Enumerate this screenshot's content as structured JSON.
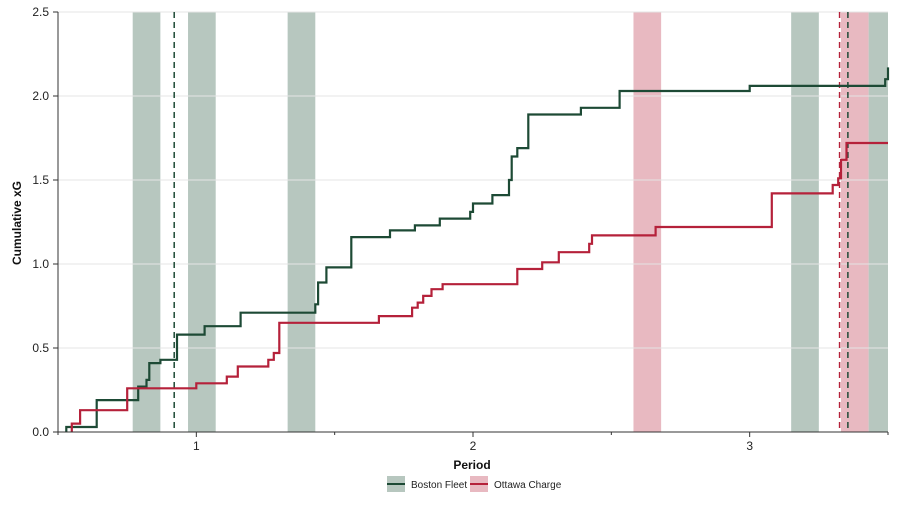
{
  "chart_data": {
    "type": "line",
    "step": true,
    "xlabel": "Period",
    "ylabel": "Cumulative xG",
    "xlim": [
      0.5,
      3.5
    ],
    "ylim": [
      0,
      2.5
    ],
    "xticks": [
      1,
      2,
      3
    ],
    "xticklabels": [
      "1",
      "2",
      "3"
    ],
    "yticks": [
      0.0,
      0.5,
      1.0,
      1.5,
      2.0,
      2.5
    ],
    "yticklabels": [
      "0.0",
      "0.5",
      "1.0",
      "1.5",
      "2.0",
      "2.5"
    ],
    "grid": "horizontal",
    "legend": "bottom-center",
    "series": [
      {
        "name": "Boston Fleet",
        "color": "#1d4a35",
        "band_color": "#b7c7bf",
        "points": [
          [
            0.53,
            0.0
          ],
          [
            0.53,
            0.03
          ],
          [
            0.58,
            0.03
          ],
          [
            0.64,
            0.03
          ],
          [
            0.64,
            0.19
          ],
          [
            0.79,
            0.19
          ],
          [
            0.79,
            0.27
          ],
          [
            0.82,
            0.27
          ],
          [
            0.82,
            0.31
          ],
          [
            0.83,
            0.31
          ],
          [
            0.83,
            0.41
          ],
          [
            0.87,
            0.41
          ],
          [
            0.87,
            0.43
          ],
          [
            0.93,
            0.43
          ],
          [
            0.93,
            0.58
          ],
          [
            1.03,
            0.58
          ],
          [
            1.03,
            0.63
          ],
          [
            1.16,
            0.63
          ],
          [
            1.16,
            0.71
          ],
          [
            1.43,
            0.71
          ],
          [
            1.43,
            0.76
          ],
          [
            1.44,
            0.76
          ],
          [
            1.44,
            0.89
          ],
          [
            1.47,
            0.89
          ],
          [
            1.47,
            0.98
          ],
          [
            1.56,
            0.98
          ],
          [
            1.56,
            1.16
          ],
          [
            1.7,
            1.16
          ],
          [
            1.7,
            1.2
          ],
          [
            1.79,
            1.2
          ],
          [
            1.79,
            1.23
          ],
          [
            1.88,
            1.23
          ],
          [
            1.88,
            1.27
          ],
          [
            1.99,
            1.27
          ],
          [
            1.99,
            1.31
          ],
          [
            2.0,
            1.31
          ],
          [
            2.0,
            1.36
          ],
          [
            2.07,
            1.36
          ],
          [
            2.07,
            1.41
          ],
          [
            2.13,
            1.41
          ],
          [
            2.13,
            1.5
          ],
          [
            2.14,
            1.5
          ],
          [
            2.14,
            1.64
          ],
          [
            2.16,
            1.64
          ],
          [
            2.16,
            1.69
          ],
          [
            2.2,
            1.69
          ],
          [
            2.2,
            1.89
          ],
          [
            2.39,
            1.89
          ],
          [
            2.39,
            1.93
          ],
          [
            2.53,
            1.93
          ],
          [
            2.53,
            2.03
          ],
          [
            3.0,
            2.03
          ],
          [
            3.0,
            2.06
          ],
          [
            3.49,
            2.06
          ],
          [
            3.49,
            2.1
          ],
          [
            3.5,
            2.1
          ],
          [
            3.5,
            2.17
          ]
        ]
      },
      {
        "name": "Ottawa Charge",
        "color": "#b5213a",
        "band_color": "#e8b9c1",
        "points": [
          [
            0.55,
            0.0
          ],
          [
            0.55,
            0.05
          ],
          [
            0.58,
            0.05
          ],
          [
            0.58,
            0.13
          ],
          [
            0.75,
            0.13
          ],
          [
            0.75,
            0.26
          ],
          [
            1.0,
            0.26
          ],
          [
            1.0,
            0.29
          ],
          [
            1.11,
            0.29
          ],
          [
            1.11,
            0.33
          ],
          [
            1.15,
            0.33
          ],
          [
            1.15,
            0.39
          ],
          [
            1.26,
            0.39
          ],
          [
            1.26,
            0.43
          ],
          [
            1.28,
            0.43
          ],
          [
            1.28,
            0.47
          ],
          [
            1.3,
            0.47
          ],
          [
            1.3,
            0.65
          ],
          [
            1.66,
            0.65
          ],
          [
            1.66,
            0.69
          ],
          [
            1.78,
            0.69
          ],
          [
            1.78,
            0.74
          ],
          [
            1.8,
            0.74
          ],
          [
            1.8,
            0.77
          ],
          [
            1.82,
            0.77
          ],
          [
            1.82,
            0.81
          ],
          [
            1.85,
            0.81
          ],
          [
            1.85,
            0.85
          ],
          [
            1.89,
            0.85
          ],
          [
            1.89,
            0.88
          ],
          [
            2.16,
            0.88
          ],
          [
            2.16,
            0.97
          ],
          [
            2.25,
            0.97
          ],
          [
            2.25,
            1.01
          ],
          [
            2.31,
            1.01
          ],
          [
            2.31,
            1.07
          ],
          [
            2.42,
            1.07
          ],
          [
            2.42,
            1.12
          ],
          [
            2.43,
            1.12
          ],
          [
            2.43,
            1.17
          ],
          [
            2.66,
            1.17
          ],
          [
            2.66,
            1.22
          ],
          [
            3.08,
            1.22
          ],
          [
            3.08,
            1.42
          ],
          [
            3.3,
            1.42
          ],
          [
            3.3,
            1.47
          ],
          [
            3.32,
            1.47
          ],
          [
            3.32,
            1.51
          ],
          [
            3.33,
            1.51
          ],
          [
            3.33,
            1.62
          ],
          [
            3.35,
            1.62
          ],
          [
            3.35,
            1.72
          ],
          [
            3.5,
            1.72
          ]
        ]
      }
    ],
    "bands": [
      {
        "team": "Boston Fleet",
        "start": 0.77,
        "end": 0.87
      },
      {
        "team": "Boston Fleet",
        "start": 0.97,
        "end": 1.07
      },
      {
        "team": "Boston Fleet",
        "start": 1.33,
        "end": 1.43
      },
      {
        "team": "Ottawa Charge",
        "start": 2.58,
        "end": 2.68
      },
      {
        "team": "Boston Fleet",
        "start": 3.15,
        "end": 3.25
      },
      {
        "team": "Ottawa Charge",
        "start": 3.33,
        "end": 3.43
      },
      {
        "team": "Boston Fleet",
        "start": 3.43,
        "end": 3.53
      }
    ],
    "goals": [
      {
        "team": "Boston Fleet",
        "x": 0.92
      },
      {
        "team": "Ottawa Charge",
        "x": 3.325
      },
      {
        "team": "Boston Fleet",
        "x": 3.355
      }
    ]
  }
}
